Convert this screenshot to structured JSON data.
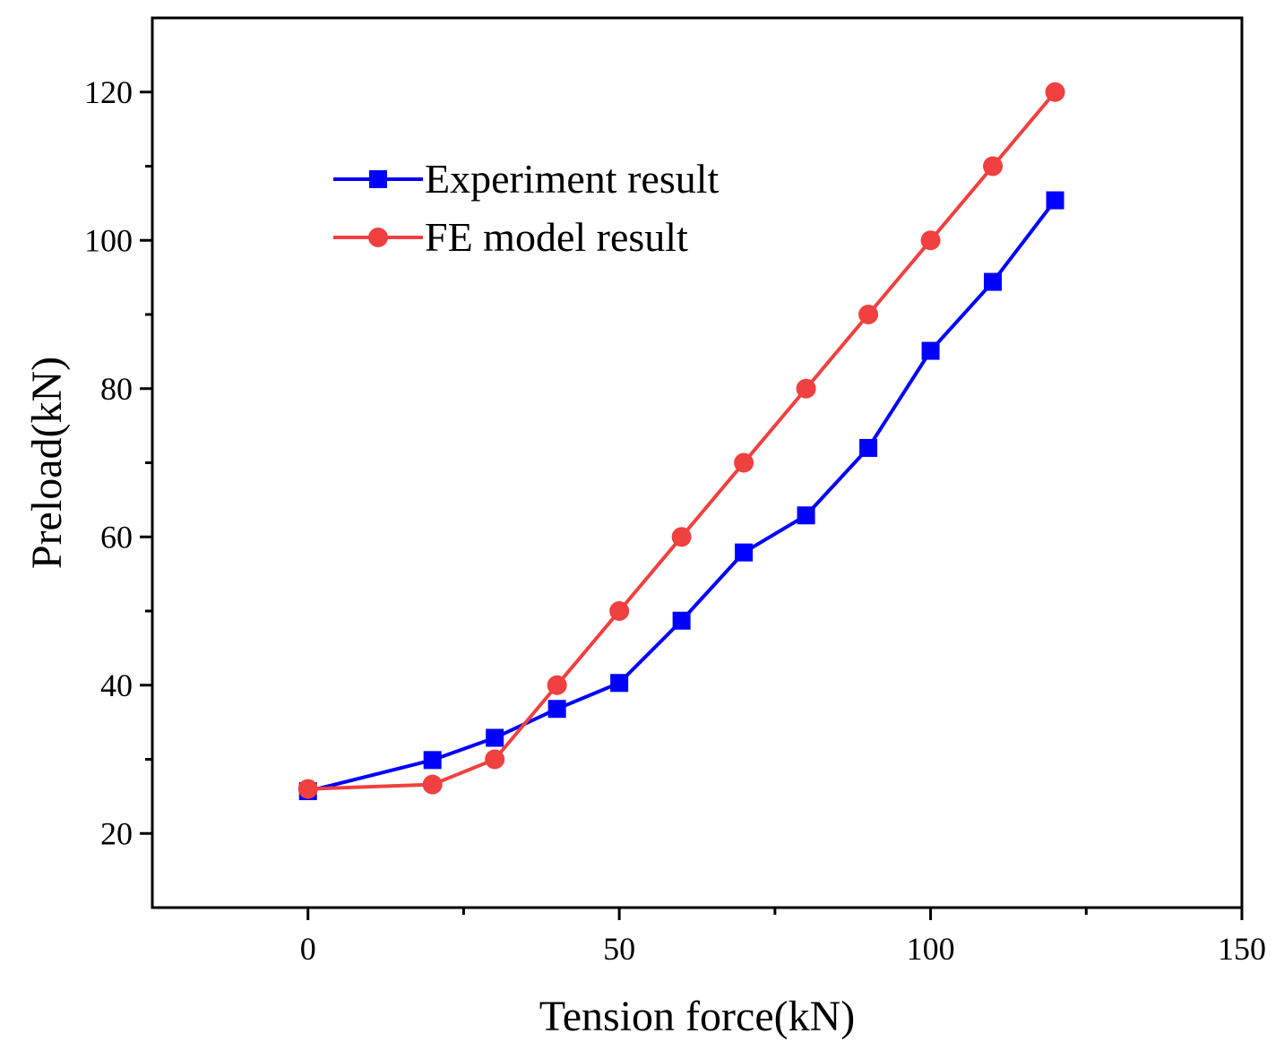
{
  "chart_data": {
    "type": "line",
    "title": "",
    "xlabel": "Tension force(kN)",
    "ylabel": "Preload(kN)",
    "xlim": [
      -25,
      150
    ],
    "ylim": [
      10,
      130
    ],
    "xticks": [
      0,
      50,
      100,
      150
    ],
    "yticks": [
      20,
      40,
      60,
      80,
      100,
      120
    ],
    "grid": false,
    "legend_position": "upper-left",
    "series": [
      {
        "name": "Experiment result",
        "color": "#0000ff",
        "marker": "square",
        "x": [
          0,
          20,
          30,
          40,
          50,
          60,
          70,
          80,
          90,
          100,
          110,
          120
        ],
        "y": [
          25.7,
          29.9,
          32.9,
          36.8,
          40.3,
          48.7,
          57.9,
          62.9,
          72.0,
          85.1,
          94.4,
          105.4
        ]
      },
      {
        "name": "FE model result",
        "color": "#f04040",
        "marker": "circle",
        "x": [
          0,
          20,
          30,
          40,
          50,
          60,
          70,
          80,
          90,
          100,
          110,
          120
        ],
        "y": [
          26.0,
          26.6,
          30.0,
          40.0,
          50.0,
          60.0,
          70.0,
          80.0,
          90.0,
          100.0,
          110.0,
          120.0
        ]
      }
    ]
  }
}
